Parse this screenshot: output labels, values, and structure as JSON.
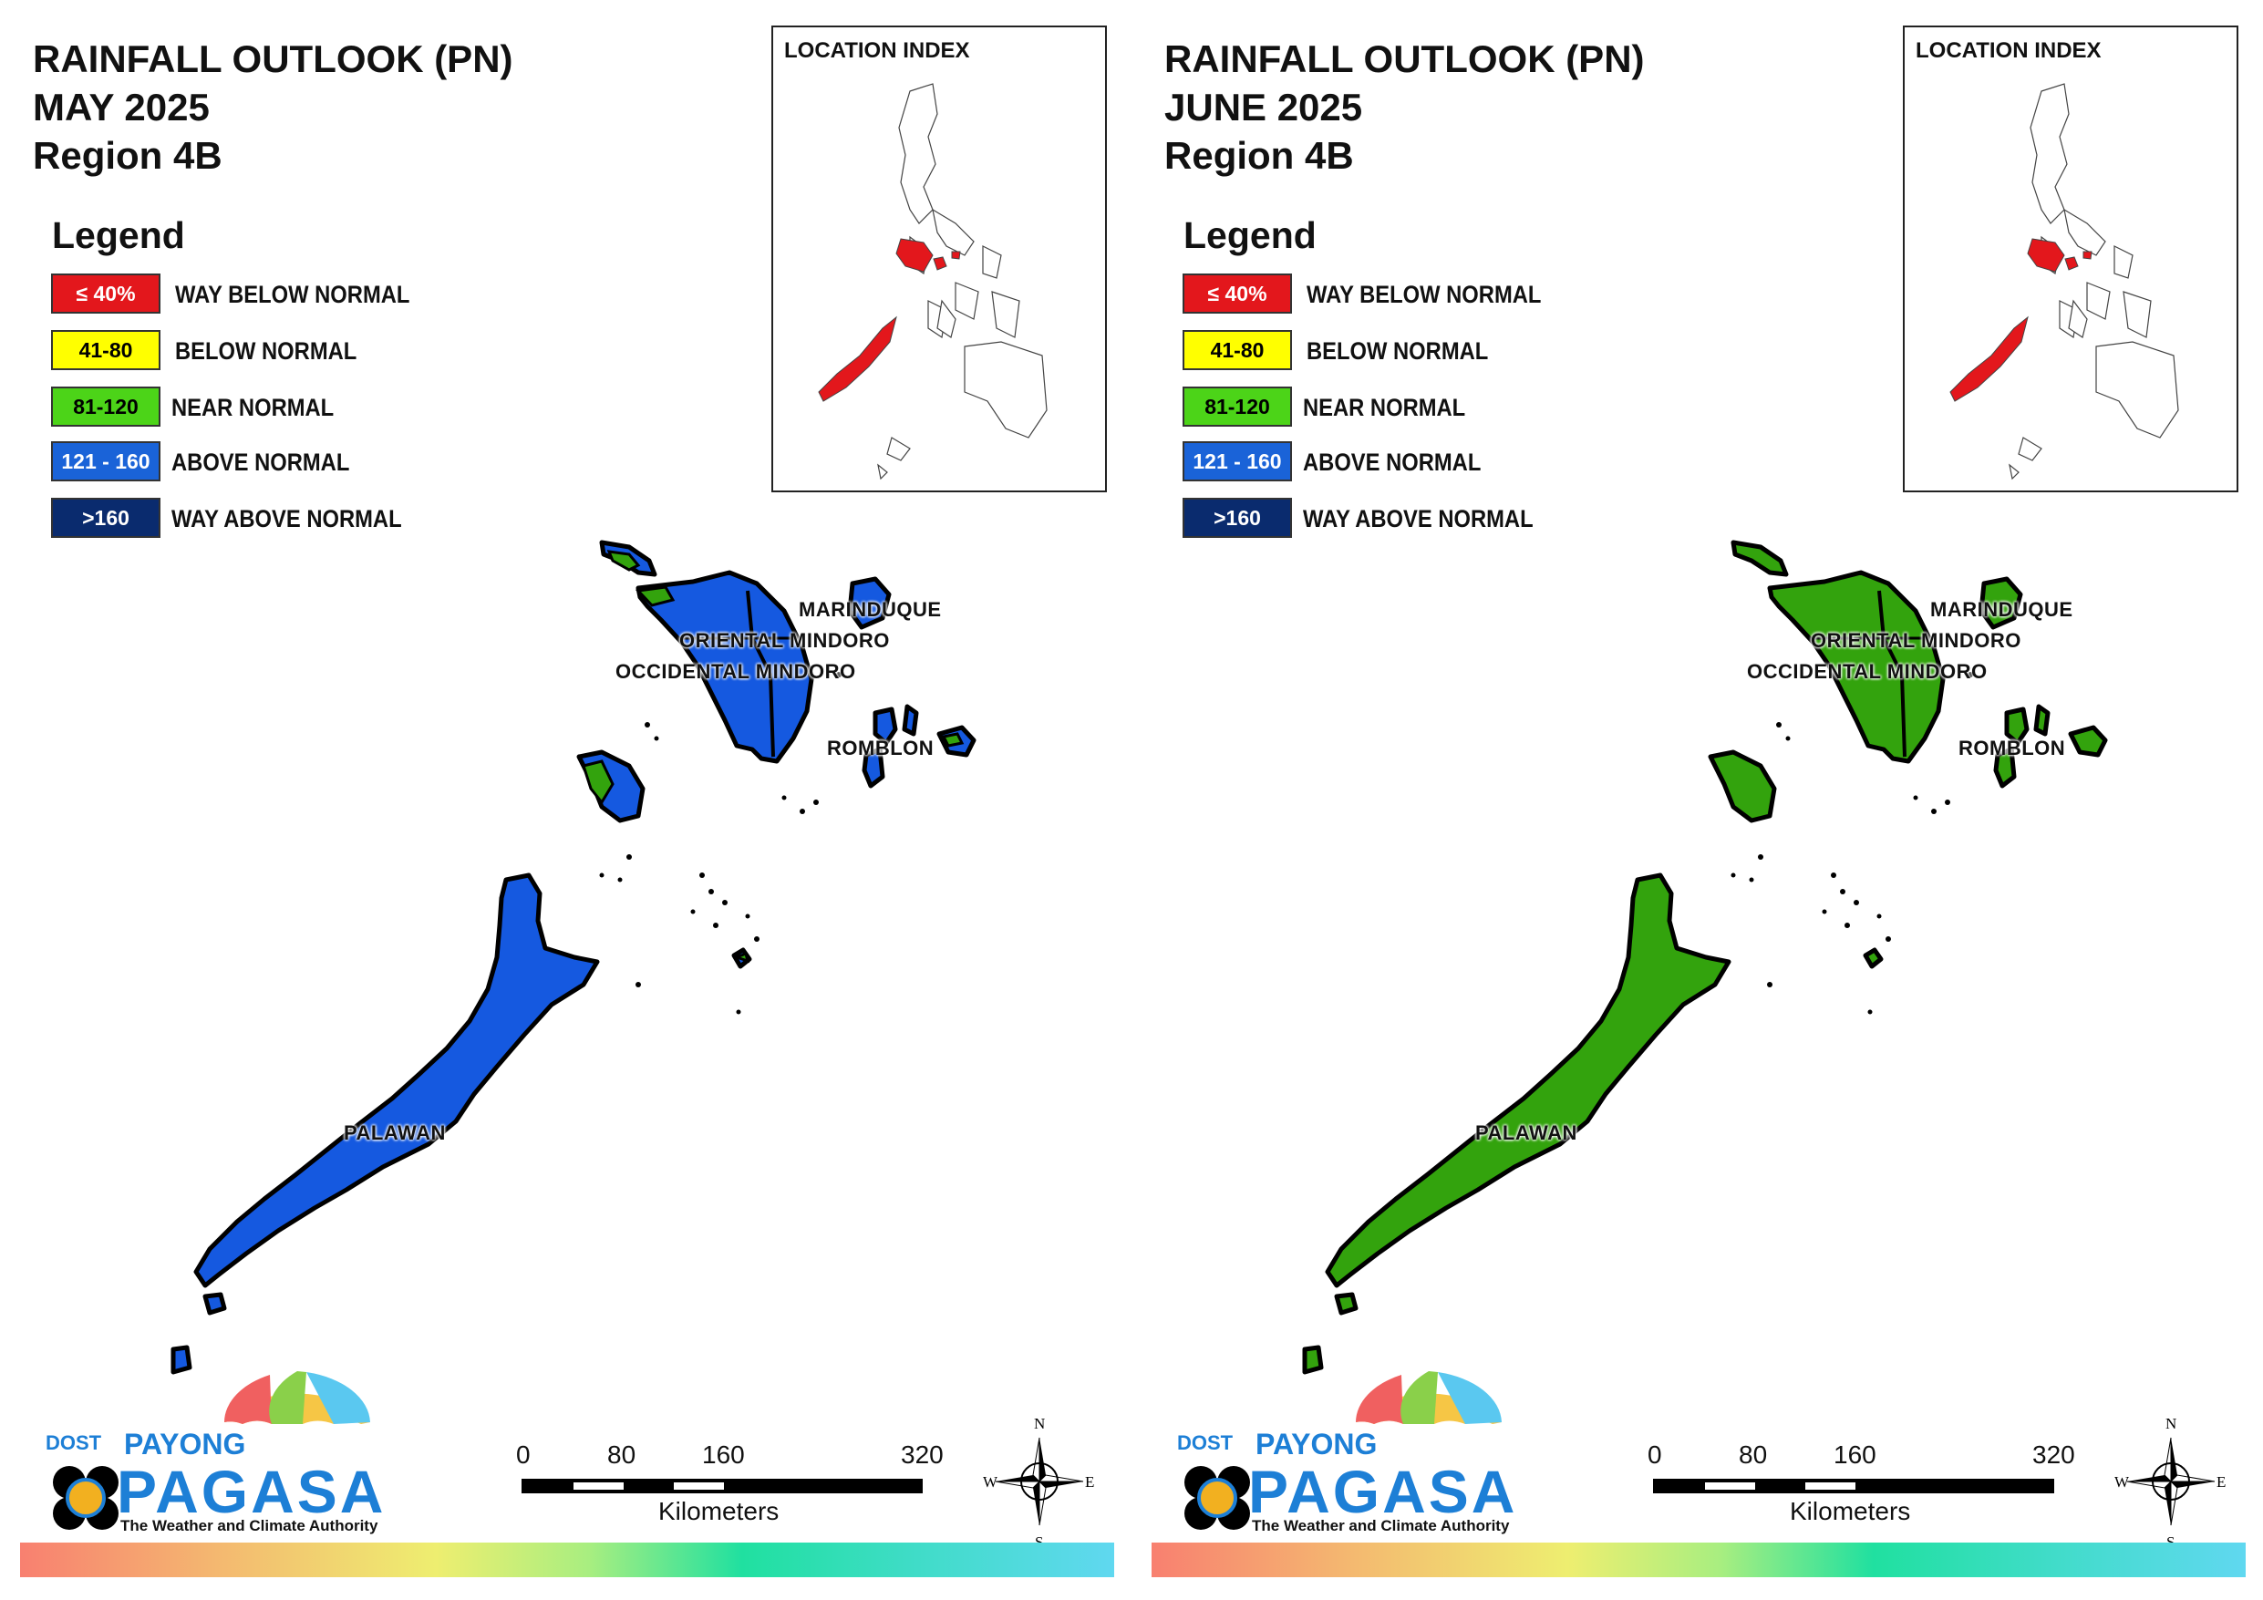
{
  "colors": {
    "way_below": "#e3171c",
    "below": "#ffff00",
    "near": "#4cd418",
    "above": "#1a63d8",
    "way_above": "#0a2b6e",
    "map_may": "#1559e0",
    "map_june": "#33a30d"
  },
  "panels": [
    {
      "title": "RAINFALL OUTLOOK (PN)",
      "month": "MAY 2025",
      "region": "Region 4B",
      "map_category": "ABOVE NORMAL"
    },
    {
      "title": "RAINFALL OUTLOOK (PN)",
      "month": "JUNE 2025",
      "region": "Region 4B",
      "map_category": "NEAR NORMAL"
    }
  ],
  "legend": {
    "heading": "Legend",
    "items": [
      {
        "range": "≤ 40%",
        "label": "WAY BELOW NORMAL",
        "color_key": "way_below",
        "text_color": "#ffffff"
      },
      {
        "range": "41-80",
        "label": "BELOW NORMAL",
        "color_key": "below",
        "text_color": "#000000"
      },
      {
        "range": "81-120",
        "label": "NEAR NORMAL",
        "color_key": "near",
        "text_color": "#000000"
      },
      {
        "range": "121 - 160",
        "label": "ABOVE NORMAL",
        "color_key": "above",
        "text_color": "#ffffff"
      },
      {
        "range": ">160",
        "label": "WAY ABOVE NORMAL",
        "color_key": "way_above",
        "text_color": "#ffffff"
      }
    ]
  },
  "inset": {
    "title": "LOCATION INDEX"
  },
  "provinces": [
    "MARINDUQUE",
    "ORIENTAL MINDORO",
    "OCCIDENTAL MINDORO",
    "ROMBLON",
    "PALAWAN"
  ],
  "scalebar": {
    "ticks": [
      "0",
      "80",
      "160",
      "320"
    ],
    "unit": "Kilometers"
  },
  "compass": {
    "n": "N",
    "s": "S",
    "e": "E",
    "w": "W"
  },
  "logo": {
    "dost": "DOST",
    "payong": "PAYONG",
    "pagasa": "PAGASA",
    "tagline": "The Weather and Climate Authority"
  }
}
